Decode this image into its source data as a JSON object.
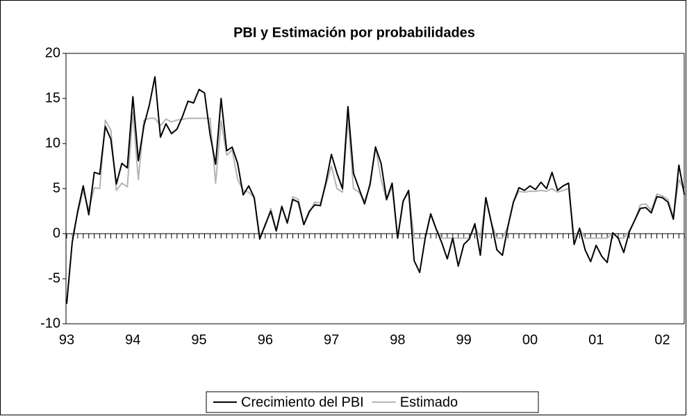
{
  "chart_data": {
    "type": "line",
    "title": "PBI y Estimación por probabilidades",
    "categories": [
      "93",
      null,
      null,
      null,
      null,
      null,
      null,
      null,
      null,
      null,
      null,
      null,
      "94",
      null,
      null,
      null,
      null,
      null,
      null,
      null,
      null,
      null,
      null,
      null,
      "95",
      null,
      null,
      null,
      null,
      null,
      null,
      null,
      null,
      null,
      null,
      null,
      "96",
      null,
      null,
      null,
      null,
      null,
      null,
      null,
      null,
      null,
      null,
      null,
      "97",
      null,
      null,
      null,
      null,
      null,
      null,
      null,
      null,
      null,
      null,
      null,
      "98",
      null,
      null,
      null,
      null,
      null,
      null,
      null,
      null,
      null,
      null,
      null,
      "99",
      null,
      null,
      null,
      null,
      null,
      null,
      null,
      null,
      null,
      null,
      null,
      "00",
      null,
      null,
      null,
      null,
      null,
      null,
      null,
      null,
      null,
      null,
      null,
      "01",
      null,
      null,
      null,
      null,
      null,
      null,
      null,
      null,
      null,
      null,
      null,
      "02",
      null,
      null,
      null,
      null
    ],
    "series": [
      {
        "name": "Crecimiento del PBI",
        "color": "#000000",
        "values": [
          -7.8,
          -1,
          2.5,
          5.3,
          2.1,
          6.8,
          6.6,
          11.9,
          10.5,
          5.5,
          7.8,
          7.3,
          15.2,
          8.1,
          12,
          14.3,
          17.4,
          10.7,
          12.2,
          11.1,
          11.6,
          13,
          14.7,
          14.5,
          16,
          15.6,
          11,
          7.7,
          15,
          9.2,
          9.6,
          7.8,
          4.3,
          5.3,
          4,
          -0.6,
          1,
          2.5,
          0.3,
          3,
          1.2,
          3.8,
          3.5,
          1,
          2.5,
          3.2,
          3.1,
          5.7,
          8.8,
          6.7,
          5,
          14.1,
          6.7,
          5,
          3.3,
          5.5,
          9.6,
          7.8,
          3.8,
          5.6,
          -0.5,
          3.6,
          4.8,
          -3,
          -4.3,
          -0.5,
          2.2,
          0.5,
          -1,
          -2.8,
          -0.5,
          -3.6,
          -1.2,
          -0.6,
          1.1,
          -2.4,
          4,
          1.2,
          -1.8,
          -2.4,
          0.8,
          3.5,
          5.1,
          4.8,
          5.3,
          4.9,
          5.7,
          5,
          6.8,
          4.8,
          5.3,
          5.6,
          -1.2,
          0.6,
          -1.8,
          -3.1,
          -1.3,
          -2.5,
          -3.2,
          0.1,
          -0.5,
          -2.1,
          0.2,
          1.5,
          2.8,
          2.9,
          2.3,
          4.1,
          4,
          3.5,
          1.6,
          7.6,
          4.3
        ]
      },
      {
        "name": "Estimado",
        "color": "#b4b4b4",
        "values": [
          null,
          -0.5,
          2.3,
          4.8,
          2.6,
          5.1,
          5,
          12.6,
          11.5,
          4.8,
          5.6,
          5.2,
          13.5,
          6,
          12.6,
          12.8,
          12.8,
          12,
          12.7,
          12.4,
          12.6,
          12.7,
          12.8,
          12.8,
          12.8,
          12.8,
          12.8,
          5.6,
          12.5,
          8.7,
          9.3,
          6,
          4.8,
          4.6,
          4,
          -0.3,
          0.8,
          2.8,
          0.3,
          3.1,
          1.1,
          4.1,
          3.8,
          1,
          2.3,
          3.5,
          3.4,
          5.4,
          7.5,
          5,
          4.6,
          12.8,
          5,
          4.6,
          3.6,
          5.3,
          9.7,
          6,
          3.7,
          5.2,
          -0.5,
          3.6,
          4.6,
          -0.5,
          -0.5,
          -0.5,
          2.1,
          0.5,
          -0.5,
          -0.5,
          -0.5,
          -0.5,
          -0.5,
          -0.5,
          0.8,
          -0.5,
          3.9,
          1.2,
          -0.5,
          -0.5,
          0.8,
          3.5,
          4.7,
          4.6,
          4.7,
          4.7,
          4.8,
          4.7,
          5,
          4.6,
          4.8,
          5,
          -0.5,
          0.5,
          -0.5,
          -0.5,
          -0.5,
          -0.5,
          -0.5,
          0.1,
          -0.5,
          -0.5,
          0.3,
          1.5,
          3.2,
          3.3,
          2.6,
          4.4,
          4.2,
          3.8,
          1.9,
          6,
          4.8
        ]
      }
    ],
    "ylim": [
      -10,
      20
    ],
    "yticks": [
      -10,
      -5,
      0,
      5,
      10,
      15,
      20
    ],
    "legend": "bottom"
  }
}
